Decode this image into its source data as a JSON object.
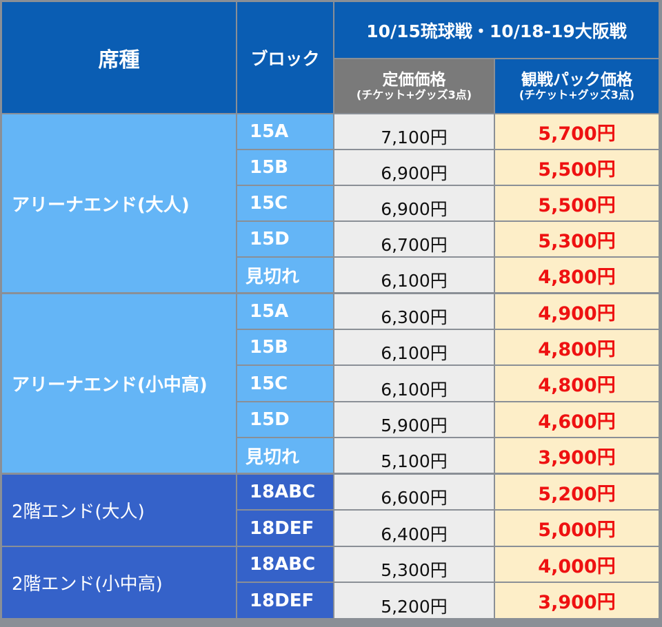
{
  "header": {
    "seat_label": "席種",
    "block_label": "ブロック",
    "event_label": "10/15琉球戦・10/18-19大阪戦",
    "regular_label": "定価価格",
    "regular_note": "(チケット+グッズ3点)",
    "pack_label": "観戦パック価格",
    "pack_note": "(チケット+グッズ3点)"
  },
  "seat_groups": [
    {
      "name": "アリーナエンド(大人)"
    },
    {
      "name": "アリーナエンド(小中高)"
    },
    {
      "name": "2階エンド(大人)"
    },
    {
      "name": "2階エンド(小中高)"
    }
  ],
  "rows": [
    {
      "block": "15A",
      "regular": "7,100円",
      "pack": "5,700円"
    },
    {
      "block": "15B",
      "regular": "6,900円",
      "pack": "5,500円"
    },
    {
      "block": "15C",
      "regular": "6,900円",
      "pack": "5,500円"
    },
    {
      "block": "15D",
      "regular": "6,700円",
      "pack": "5,300円"
    },
    {
      "block": "見切れ",
      "regular": "6,100円",
      "pack": "4,800円"
    },
    {
      "block": "15A",
      "regular": "6,300円",
      "pack": "4,900円"
    },
    {
      "block": "15B",
      "regular": "6,100円",
      "pack": "4,800円"
    },
    {
      "block": "15C",
      "regular": "6,100円",
      "pack": "4,800円"
    },
    {
      "block": "15D",
      "regular": "5,900円",
      "pack": "4,600円"
    },
    {
      "block": "見切れ",
      "regular": "5,100円",
      "pack": "3,900円"
    },
    {
      "block": "18ABC",
      "regular": "6,600円",
      "pack": "5,200円"
    },
    {
      "block": "18DEF",
      "regular": "6,400円",
      "pack": "5,000円"
    },
    {
      "block": "18ABC",
      "regular": "5,300円",
      "pack": "4,000円"
    },
    {
      "block": "18DEF",
      "regular": "5,200円",
      "pack": "3,900円"
    }
  ],
  "colors": {
    "header_blue": "#0a5db3",
    "header_gray": "#7a7a7a",
    "arena_blue": "#64b5f6",
    "upper_blue": "#3562c9",
    "regular_bg": "#ededed",
    "pack_bg": "#fdeec8",
    "pack_text": "#ee1111"
  }
}
